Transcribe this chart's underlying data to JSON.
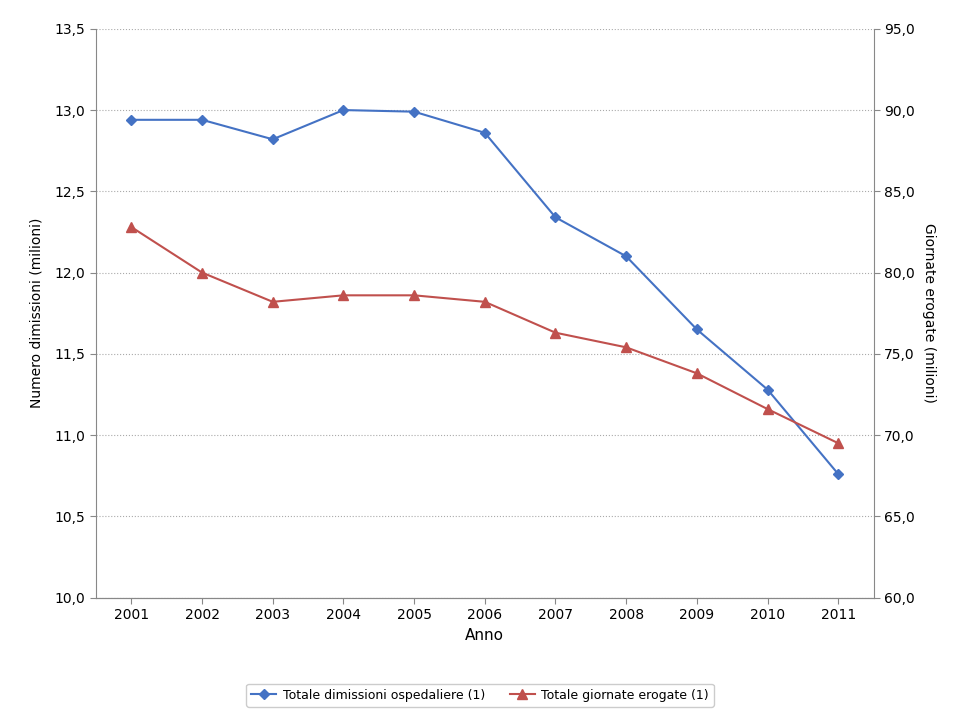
{
  "years": [
    2001,
    2002,
    2003,
    2004,
    2005,
    2006,
    2007,
    2008,
    2009,
    2010,
    2011
  ],
  "dimissioni": [
    12.94,
    12.94,
    12.82,
    13.0,
    12.99,
    12.86,
    12.34,
    12.1,
    11.65,
    11.28,
    10.76
  ],
  "giornate": [
    82.8,
    80.0,
    78.2,
    78.6,
    78.6,
    78.2,
    76.3,
    75.4,
    73.8,
    71.6,
    69.5
  ],
  "left_ylim": [
    10.0,
    13.5
  ],
  "right_ylim": [
    60.0,
    95.0
  ],
  "left_yticks": [
    10.0,
    10.5,
    11.0,
    11.5,
    12.0,
    12.5,
    13.0,
    13.5
  ],
  "right_yticks": [
    60.0,
    65.0,
    70.0,
    75.0,
    80.0,
    85.0,
    90.0,
    95.0
  ],
  "xlabel": "Anno",
  "ylabel_left": "Numero dimissioni (milioni)",
  "ylabel_right": "Giornate erogate (milioni)",
  "legend_blue": "Totale dimissioni ospedaliere (1)",
  "legend_red": "Totale giornate erogate (1)",
  "line_color_blue": "#4472C4",
  "line_color_red": "#C0504D",
  "background_color": "#FFFFFF",
  "grid_color": "#AAAAAA"
}
